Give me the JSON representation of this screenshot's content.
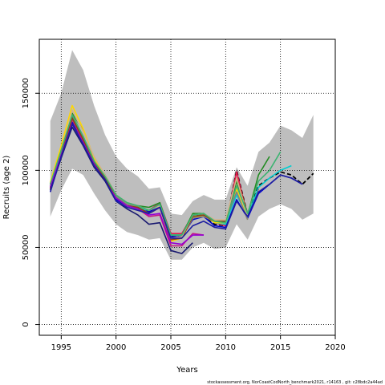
{
  "chart_data": {
    "type": "line",
    "title": "",
    "xlabel": "Years",
    "ylabel": "Recruits (age 2)",
    "xlim": [
      1993,
      2020
    ],
    "ylim": [
      -7000,
      185000
    ],
    "x_ticks": [
      1995,
      2000,
      2005,
      2010,
      2015,
      2020
    ],
    "y_ticks": [
      0,
      50000,
      100000,
      150000
    ],
    "x_tick_labels": [
      "1995",
      "2000",
      "2005",
      "2010",
      "2015",
      "2020"
    ],
    "y_tick_labels": [
      "0",
      "50000",
      "100000",
      "150000"
    ],
    "grid": true,
    "legend": "none",
    "caption": "stockassessment.org, NorCoastCodNorth_benchmark2021, r14163 , git: c28bdc2a44ad",
    "confidence_band": {
      "x": [
        1994,
        1995,
        1996,
        1997,
        1998,
        1999,
        2000,
        2001,
        2002,
        2003,
        2004,
        2005,
        2006,
        2007,
        2008,
        2009,
        2010,
        2011,
        2012,
        2013,
        2014,
        2015,
        2016,
        2017,
        2018
      ],
      "upper": [
        132000,
        150000,
        178000,
        165000,
        142000,
        123000,
        109000,
        101000,
        96000,
        88000,
        89000,
        72000,
        71000,
        80000,
        84000,
        81000,
        81000,
        102000,
        90000,
        112000,
        118000,
        129000,
        126000,
        121000,
        136000
      ],
      "lower": [
        70000,
        87000,
        101000,
        97000,
        85000,
        74000,
        65000,
        60000,
        58000,
        55000,
        56000,
        42000,
        42000,
        50000,
        53000,
        49000,
        50000,
        65000,
        55000,
        70000,
        75000,
        78000,
        75000,
        68000,
        72000
      ]
    },
    "series": [
      {
        "color": "#000000",
        "style": "dashed",
        "x": [
          1994,
          1995,
          1996,
          1997,
          1998,
          1999,
          2000,
          2001,
          2002,
          2003,
          2004,
          2005,
          2006,
          2007,
          2008,
          2009,
          2010,
          2011,
          2012,
          2013,
          2014,
          2015,
          2016,
          2017,
          2018
        ],
        "values": [
          90000,
          112000,
          133000,
          120000,
          105000,
          95000,
          83000,
          78000,
          76000,
          73000,
          78000,
          57000,
          57000,
          71000,
          71000,
          65000,
          64000,
          100000,
          71000,
          90000,
          95000,
          99000,
          97000,
          91000,
          98000
        ]
      },
      {
        "color": "#e6194b",
        "style": "solid",
        "x": [
          1994,
          1995,
          1996,
          1997,
          1998,
          1999,
          2000,
          2001,
          2002,
          2003,
          2004,
          2005,
          2006,
          2007,
          2008,
          2009,
          2010,
          2011,
          2012,
          2013
        ],
        "values": [
          88000,
          112000,
          135000,
          121000,
          105000,
          95000,
          83000,
          78000,
          77000,
          74000,
          79000,
          59000,
          59000,
          71000,
          72000,
          66000,
          64000,
          99000,
          70000,
          88000
        ]
      },
      {
        "color": "#228b22",
        "style": "solid",
        "x": [
          1994,
          1995,
          1996,
          1997,
          1998,
          1999,
          2000,
          2001,
          2002,
          2003,
          2004,
          2005,
          2006,
          2007,
          2008,
          2009,
          2010,
          2011,
          2012,
          2013,
          2014
        ],
        "values": [
          91000,
          114000,
          137000,
          126000,
          108000,
          97000,
          84000,
          79000,
          77000,
          76000,
          79000,
          58000,
          58000,
          72000,
          72000,
          66000,
          66000,
          93000,
          71000,
          97000,
          109000
        ]
      },
      {
        "color": "#0000cd",
        "style": "solid",
        "x": [
          1994,
          1995,
          1996,
          1997,
          1998,
          1999,
          2000,
          2001,
          2002,
          2003,
          2004,
          2005,
          2006,
          2007,
          2008,
          2009,
          2010,
          2011,
          2012,
          2013,
          2014,
          2015,
          2016,
          2017
        ],
        "values": [
          86000,
          110000,
          131000,
          118000,
          104000,
          94000,
          81000,
          77000,
          75000,
          73000,
          77000,
          57000,
          57000,
          68000,
          70000,
          64000,
          63000,
          81000,
          69000,
          85000,
          91000,
          97000,
          95000,
          91000
        ]
      },
      {
        "color": "#00ced1",
        "style": "solid",
        "x": [
          1994,
          1995,
          1996,
          1997,
          1998,
          1999,
          2000,
          2001,
          2002,
          2003,
          2004,
          2005,
          2006,
          2007,
          2008,
          2009,
          2010,
          2011,
          2012,
          2013,
          2014,
          2015,
          2016
        ],
        "values": [
          90000,
          112000,
          134000,
          120000,
          106000,
          95000,
          83000,
          78000,
          76000,
          74000,
          78000,
          58000,
          58000,
          70000,
          71000,
          66000,
          65000,
          84000,
          70000,
          89000,
          95000,
          100000,
          103000
        ]
      },
      {
        "color": "#c71585",
        "style": "solid",
        "x": [
          1994,
          1995,
          1996,
          1997,
          1998,
          1999,
          2000,
          2001,
          2002,
          2003,
          2004,
          2005,
          2006,
          2007,
          2008
        ],
        "values": [
          88000,
          111000,
          133000,
          119000,
          104000,
          94000,
          82000,
          77000,
          75000,
          70000,
          71000,
          51000,
          51000,
          59000,
          58000
        ]
      },
      {
        "color": "#ffd700",
        "style": "solid",
        "x": [
          1994,
          1995,
          1996,
          1997,
          1998,
          1999,
          2000,
          2001,
          2002,
          2003,
          2004,
          2005,
          2006,
          2007,
          2008,
          2009,
          2010,
          2011,
          2012
        ],
        "values": [
          92000,
          116000,
          142000,
          127000,
          108000,
          96000,
          84000,
          78000,
          76000,
          72000,
          76000,
          54000,
          56000,
          69000,
          71000,
          66000,
          66000,
          88000,
          68000
        ]
      },
      {
        "color": "#808080",
        "style": "solid",
        "x": [
          1994,
          1995,
          1996,
          1997,
          1998,
          1999,
          2000,
          2001,
          2002,
          2003,
          2004,
          2005,
          2006,
          2007,
          2008,
          2009,
          2010,
          2011,
          2012
        ],
        "values": [
          89000,
          113000,
          136000,
          122000,
          106000,
          95000,
          83000,
          78000,
          76000,
          72000,
          76000,
          55000,
          56000,
          69000,
          70000,
          67000,
          67000,
          86000,
          68000
        ]
      },
      {
        "color": "#8b4513",
        "style": "solid",
        "x": [
          1994,
          1995,
          1996,
          1997,
          1998,
          1999,
          2000,
          2001,
          2002,
          2003,
          2004,
          2005,
          2006,
          2007,
          2008,
          2009,
          2010,
          2011,
          2012
        ],
        "values": [
          88000,
          112000,
          134000,
          120000,
          105000,
          95000,
          82000,
          77000,
          76000,
          72000,
          76000,
          55000,
          56000,
          70000,
          71000,
          67000,
          67000,
          95000,
          72000
        ]
      },
      {
        "color": "#d2b48c",
        "style": "solid",
        "x": [
          1994,
          1995,
          1996,
          1997,
          1998,
          1999,
          2000,
          2001,
          2002,
          2003,
          2004,
          2005,
          2006,
          2007,
          2008,
          2009,
          2010,
          2011,
          2012
        ],
        "values": [
          90000,
          113000,
          139000,
          125000,
          109000,
          97000,
          84000,
          79000,
          77000,
          74000,
          77000,
          56000,
          57000,
          71000,
          72000,
          68000,
          68000,
          95000,
          70000
        ]
      },
      {
        "color": "#3cb371",
        "style": "solid",
        "x": [
          1994,
          1995,
          1996,
          1997,
          1998,
          1999,
          2000,
          2001,
          2002,
          2003,
          2004,
          2005,
          2006,
          2007,
          2008,
          2009,
          2010,
          2011,
          2012,
          2013,
          2014,
          2015
        ],
        "values": [
          91000,
          113000,
          136000,
          122000,
          106000,
          96000,
          84000,
          79000,
          77000,
          74000,
          78000,
          58000,
          58000,
          71000,
          72000,
          67000,
          66000,
          90000,
          72000,
          93000,
          100000,
          112000
        ]
      },
      {
        "color": "#9400d3",
        "style": "solid",
        "x": [
          1994,
          1995,
          1996,
          1997,
          1998,
          1999,
          2000,
          2001,
          2002,
          2003,
          2004,
          2005,
          2006,
          2007,
          2008
        ],
        "values": [
          89000,
          110000,
          130000,
          118000,
          104000,
          93000,
          82000,
          77000,
          75000,
          71000,
          72000,
          53000,
          52000,
          58000,
          58000
        ]
      },
      {
        "color": "#191970",
        "style": "solid",
        "x": [
          1994,
          1995,
          1996,
          1997,
          1998,
          1999,
          2000,
          2001,
          2002,
          2003,
          2004,
          2005,
          2006,
          2007
        ],
        "values": [
          87000,
          108000,
          128000,
          116000,
          102000,
          93000,
          80000,
          75000,
          71000,
          65000,
          66000,
          48000,
          46000,
          53000
        ]
      },
      {
        "color": "#1e1ea0",
        "style": "solid",
        "x": [
          1994,
          1995,
          1996,
          1997,
          1998,
          1999,
          2000,
          2001,
          2002,
          2003,
          2004,
          2005,
          2006,
          2007,
          2008,
          2009,
          2010,
          2011,
          2012,
          2013,
          2014,
          2015,
          2016,
          2017
        ],
        "values": [
          86000,
          109000,
          130000,
          117000,
          103000,
          94000,
          80000,
          76000,
          74000,
          72000,
          76000,
          56000,
          56000,
          64000,
          67000,
          63000,
          62000,
          80000,
          70000,
          86000,
          91000,
          97000,
          95000,
          91000
        ]
      }
    ]
  }
}
